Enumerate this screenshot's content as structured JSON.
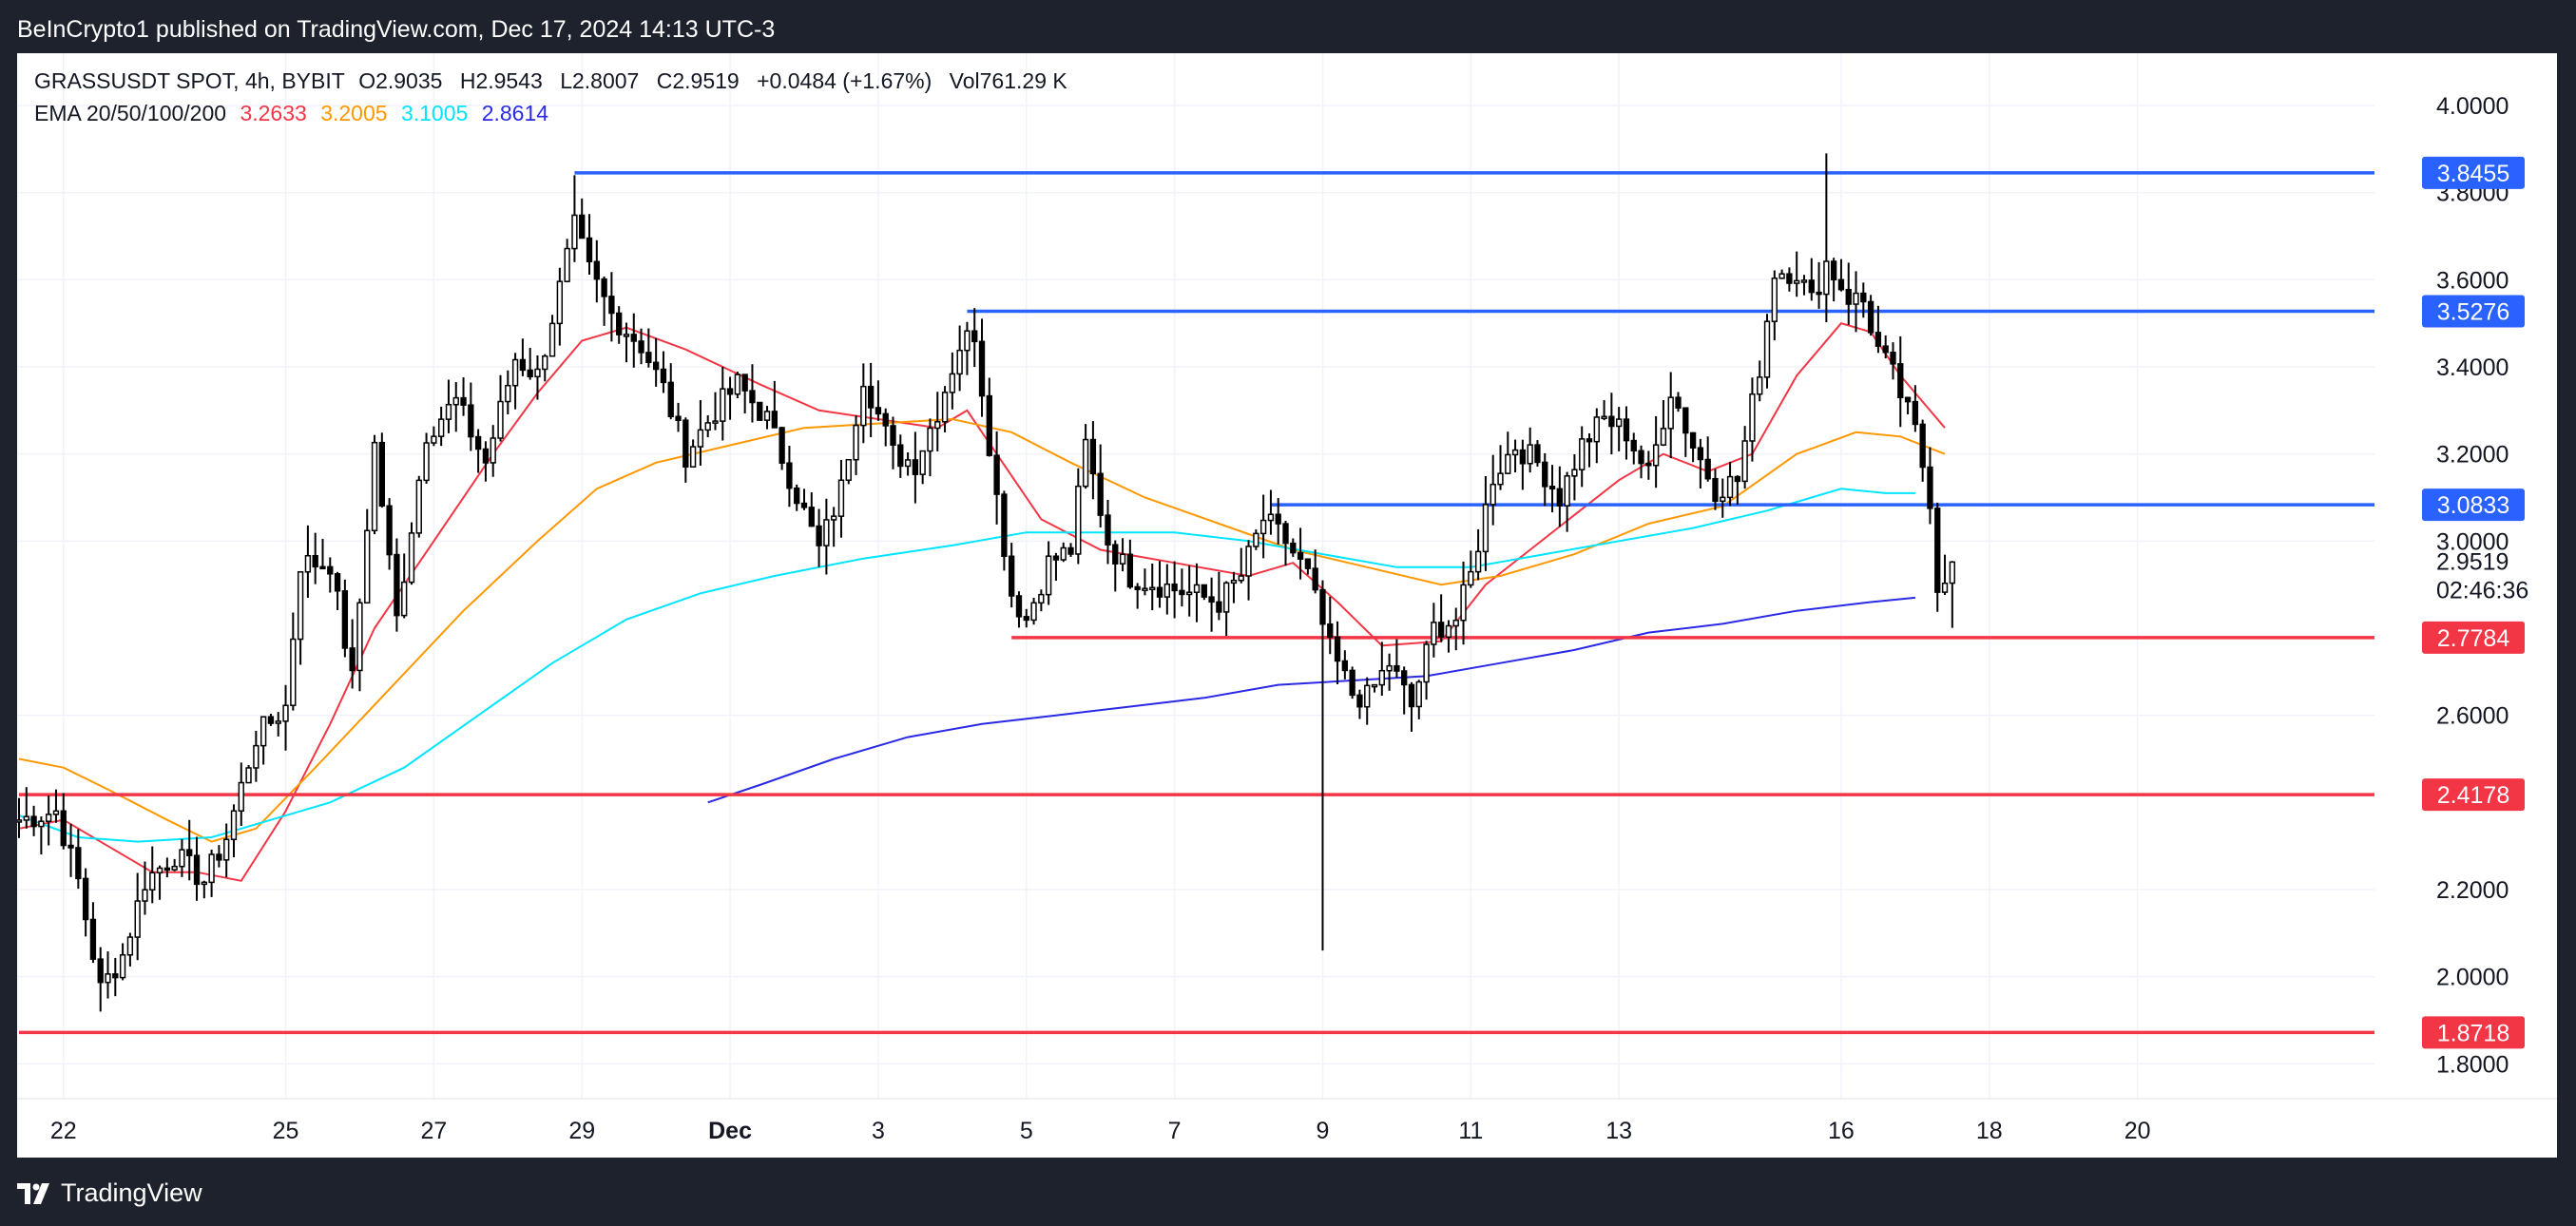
{
  "header": {
    "attribution": "BeInCrypto1 published on TradingView.com, Dec 17, 2024 14:13 UTC-3"
  },
  "footer": {
    "brand": "TradingView"
  },
  "legend": {
    "symbol_line": "GRASSUSDT SPOT, 4h, BYBIT",
    "o_label": "O",
    "o_value": "2.9035",
    "h_label": "H",
    "h_value": "2.9543",
    "l_label": "L",
    "l_value": "2.8007",
    "c_label": "C",
    "c_value": "2.9519",
    "change": "+0.0484 (+1.67%)",
    "vol_label": "Vol",
    "vol_value": "761.29 K",
    "ema_label": "EMA 20/50/100/200",
    "ema20": "3.2633",
    "ema50": "3.2005",
    "ema100": "3.1005",
    "ema200": "2.8614"
  },
  "colors": {
    "ema20": "#f23645",
    "ema50": "#ff9800",
    "ema100": "#00e5ff",
    "ema200": "#2a2ae6",
    "resistance": "#2962ff",
    "support": "#f23645",
    "up": "#ffffff",
    "down": "#000000"
  },
  "chart_data": {
    "type": "candlestick",
    "title": "GRASSUSDT SPOT, 4h, BYBIT",
    "ylim": [
      1.72,
      4.12
    ],
    "xlim": [
      0,
      318
    ],
    "y_ticks": [
      "4.0000",
      "3.8000",
      "3.6000",
      "3.4000",
      "3.2000",
      "3.0000",
      "2.6000",
      "2.2000",
      "2.0000",
      "1.8000"
    ],
    "x_ticks": [
      {
        "label": "22",
        "i": 6
      },
      {
        "label": "25",
        "i": 36
      },
      {
        "label": "27",
        "i": 56
      },
      {
        "label": "29",
        "i": 76
      },
      {
        "label": "Dec",
        "i": 96
      },
      {
        "label": "3",
        "i": 116
      },
      {
        "label": "5",
        "i": 136
      },
      {
        "label": "7",
        "i": 156
      },
      {
        "label": "9",
        "i": 176
      },
      {
        "label": "11",
        "i": 196
      },
      {
        "label": "13",
        "i": 216
      },
      {
        "label": "16",
        "i": 246
      },
      {
        "label": "18",
        "i": 266
      },
      {
        "label": "20",
        "i": 286
      }
    ],
    "current_price": "2.9519",
    "countdown": "02:46:36",
    "levels": [
      {
        "value": 3.8455,
        "label": "3.8455",
        "kind": "resistance",
        "from": 75
      },
      {
        "value": 3.5276,
        "label": "3.5276",
        "kind": "resistance",
        "from": 128
      },
      {
        "value": 3.0833,
        "label": "3.0833",
        "kind": "resistance",
        "from": 169
      },
      {
        "value": 2.7784,
        "label": "2.7784",
        "kind": "support",
        "from": 134
      },
      {
        "value": 2.4178,
        "label": "2.4178",
        "kind": "support",
        "from": 0
      },
      {
        "value": 1.8718,
        "label": "1.8718",
        "kind": "support",
        "from": 0
      }
    ],
    "ohlc_anchors": [
      [
        0,
        2.36
      ],
      [
        5,
        2.38
      ],
      [
        8,
        2.22
      ],
      [
        11,
        1.97
      ],
      [
        14,
        2.05
      ],
      [
        17,
        2.22
      ],
      [
        21,
        2.28
      ],
      [
        25,
        2.22
      ],
      [
        28,
        2.32
      ],
      [
        32,
        2.55
      ],
      [
        36,
        2.62
      ],
      [
        38,
        2.95
      ],
      [
        42,
        2.95
      ],
      [
        45,
        2.68
      ],
      [
        48,
        3.22
      ],
      [
        51,
        2.82
      ],
      [
        55,
        3.25
      ],
      [
        59,
        3.32
      ],
      [
        63,
        3.18
      ],
      [
        67,
        3.42
      ],
      [
        70,
        3.38
      ],
      [
        73,
        3.58
      ],
      [
        75,
        3.72
      ],
      [
        77,
        3.62
      ],
      [
        80,
        3.52
      ],
      [
        84,
        3.45
      ],
      [
        87,
        3.35
      ],
      [
        90,
        3.2
      ],
      [
        94,
        3.3
      ],
      [
        97,
        3.36
      ],
      [
        101,
        3.28
      ],
      [
        104,
        3.15
      ],
      [
        108,
        2.98
      ],
      [
        111,
        3.12
      ],
      [
        114,
        3.38
      ],
      [
        118,
        3.2
      ],
      [
        121,
        3.18
      ],
      [
        124,
        3.3
      ],
      [
        127,
        3.45
      ],
      [
        129,
        3.48
      ],
      [
        132,
        3.1
      ],
      [
        134,
        2.88
      ],
      [
        136,
        2.82
      ],
      [
        139,
        2.95
      ],
      [
        142,
        2.98
      ],
      [
        144,
        3.22
      ],
      [
        147,
        3.0
      ],
      [
        150,
        2.92
      ],
      [
        154,
        2.9
      ],
      [
        158,
        2.88
      ],
      [
        162,
        2.86
      ],
      [
        165,
        2.92
      ],
      [
        168,
        3.05
      ],
      [
        171,
        3.0
      ],
      [
        174,
        2.92
      ],
      [
        177,
        2.75
      ],
      [
        180,
        2.65
      ],
      [
        182,
        2.64
      ],
      [
        185,
        2.72
      ],
      [
        188,
        2.62
      ],
      [
        191,
        2.8
      ],
      [
        194,
        2.82
      ],
      [
        196,
        2.92
      ],
      [
        199,
        3.15
      ],
      [
        202,
        3.22
      ],
      [
        205,
        3.18
      ],
      [
        208,
        3.1
      ],
      [
        211,
        3.22
      ],
      [
        214,
        3.28
      ],
      [
        217,
        3.25
      ],
      [
        220,
        3.15
      ],
      [
        223,
        3.35
      ],
      [
        226,
        3.22
      ],
      [
        229,
        3.12
      ],
      [
        232,
        3.14
      ],
      [
        235,
        3.4
      ],
      [
        237,
        3.62
      ],
      [
        240,
        3.62
      ],
      [
        242,
        3.55
      ],
      [
        244,
        3.64
      ],
      [
        247,
        3.56
      ],
      [
        249,
        3.55
      ],
      [
        251,
        3.44
      ],
      [
        253,
        3.38
      ],
      [
        256,
        3.25
      ],
      [
        258,
        3.1
      ],
      [
        259,
        2.9
      ],
      [
        261,
        2.95
      ]
    ],
    "last_candle": {
      "i": 261,
      "open": 2.9035,
      "high": 2.9543,
      "low": 2.8007,
      "close": 2.9519
    },
    "ema_series": [
      {
        "name": "EMA 20",
        "value": 3.2633,
        "points": [
          [
            0,
            2.34
          ],
          [
            6,
            2.36
          ],
          [
            12,
            2.3
          ],
          [
            18,
            2.24
          ],
          [
            24,
            2.24
          ],
          [
            30,
            2.22
          ],
          [
            36,
            2.38
          ],
          [
            42,
            2.58
          ],
          [
            48,
            2.8
          ],
          [
            56,
            3.0
          ],
          [
            64,
            3.2
          ],
          [
            70,
            3.34
          ],
          [
            76,
            3.46
          ],
          [
            82,
            3.49
          ],
          [
            90,
            3.44
          ],
          [
            100,
            3.36
          ],
          [
            108,
            3.3
          ],
          [
            116,
            3.28
          ],
          [
            124,
            3.26
          ],
          [
            128,
            3.3
          ],
          [
            132,
            3.2
          ],
          [
            138,
            3.05
          ],
          [
            146,
            2.98
          ],
          [
            156,
            2.95
          ],
          [
            166,
            2.92
          ],
          [
            172,
            2.95
          ],
          [
            178,
            2.86
          ],
          [
            184,
            2.76
          ],
          [
            192,
            2.77
          ],
          [
            198,
            2.9
          ],
          [
            204,
            2.98
          ],
          [
            210,
            3.06
          ],
          [
            216,
            3.14
          ],
          [
            222,
            3.2
          ],
          [
            228,
            3.16
          ],
          [
            234,
            3.2
          ],
          [
            240,
            3.38
          ],
          [
            246,
            3.5
          ],
          [
            250,
            3.48
          ],
          [
            254,
            3.38
          ],
          [
            260,
            3.26
          ]
        ]
      },
      {
        "name": "EMA 50",
        "value": 3.2005,
        "points": [
          [
            0,
            2.5
          ],
          [
            6,
            2.48
          ],
          [
            12,
            2.43
          ],
          [
            20,
            2.36
          ],
          [
            26,
            2.31
          ],
          [
            32,
            2.34
          ],
          [
            40,
            2.48
          ],
          [
            50,
            2.66
          ],
          [
            60,
            2.84
          ],
          [
            70,
            3.0
          ],
          [
            78,
            3.12
          ],
          [
            86,
            3.18
          ],
          [
            96,
            3.22
          ],
          [
            106,
            3.26
          ],
          [
            116,
            3.27
          ],
          [
            126,
            3.28
          ],
          [
            134,
            3.25
          ],
          [
            142,
            3.18
          ],
          [
            152,
            3.1
          ],
          [
            162,
            3.04
          ],
          [
            172,
            2.98
          ],
          [
            182,
            2.94
          ],
          [
            192,
            2.9
          ],
          [
            200,
            2.92
          ],
          [
            210,
            2.97
          ],
          [
            220,
            3.04
          ],
          [
            230,
            3.08
          ],
          [
            240,
            3.2
          ],
          [
            248,
            3.25
          ],
          [
            254,
            3.24
          ],
          [
            260,
            3.2
          ]
        ]
      },
      {
        "name": "EMA 100",
        "value": 3.1005,
        "points": [
          [
            0,
            2.37
          ],
          [
            8,
            2.32
          ],
          [
            16,
            2.31
          ],
          [
            26,
            2.32
          ],
          [
            34,
            2.36
          ],
          [
            42,
            2.4
          ],
          [
            52,
            2.48
          ],
          [
            62,
            2.6
          ],
          [
            72,
            2.72
          ],
          [
            82,
            2.82
          ],
          [
            92,
            2.88
          ],
          [
            102,
            2.92
          ],
          [
            114,
            2.96
          ],
          [
            126,
            2.99
          ],
          [
            136,
            3.02
          ],
          [
            146,
            3.02
          ],
          [
            156,
            3.02
          ],
          [
            166,
            3.0
          ],
          [
            176,
            2.97
          ],
          [
            186,
            2.94
          ],
          [
            196,
            2.94
          ],
          [
            206,
            2.97
          ],
          [
            216,
            3.0
          ],
          [
            226,
            3.03
          ],
          [
            236,
            3.07
          ],
          [
            246,
            3.12
          ],
          [
            252,
            3.11
          ],
          [
            256,
            3.11
          ]
        ]
      },
      {
        "name": "EMA 200",
        "value": 2.8614,
        "points": [
          [
            93,
            2.4
          ],
          [
            100,
            2.44
          ],
          [
            110,
            2.5
          ],
          [
            120,
            2.55
          ],
          [
            130,
            2.58
          ],
          [
            140,
            2.6
          ],
          [
            150,
            2.62
          ],
          [
            160,
            2.64
          ],
          [
            170,
            2.67
          ],
          [
            180,
            2.68
          ],
          [
            190,
            2.69
          ],
          [
            200,
            2.72
          ],
          [
            210,
            2.75
          ],
          [
            220,
            2.79
          ],
          [
            230,
            2.81
          ],
          [
            240,
            2.84
          ],
          [
            250,
            2.86
          ],
          [
            256,
            2.87
          ]
        ]
      }
    ]
  }
}
